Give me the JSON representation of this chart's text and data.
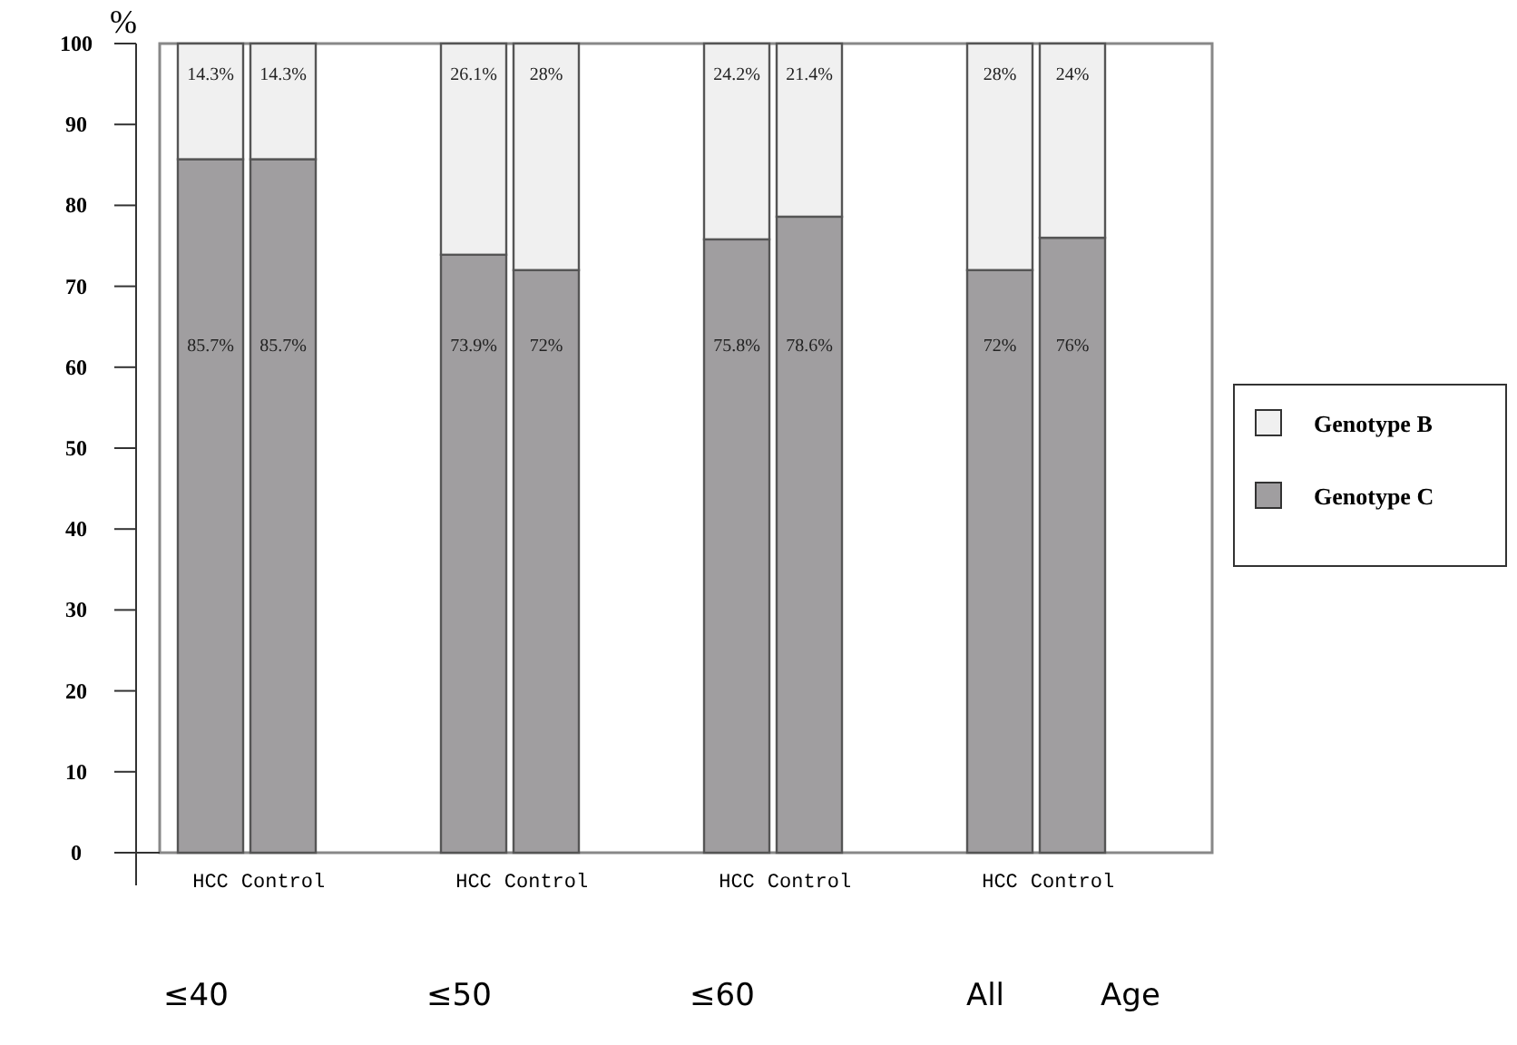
{
  "chart_data": {
    "type": "bar",
    "stacked": true,
    "ylabel": "%",
    "xlabel": "Age",
    "categories": [
      "HCC",
      "Control",
      "HCC",
      "Control",
      "HCC",
      "Control",
      "HCC",
      "Control"
    ],
    "series": [
      {
        "name": "Genotype C",
        "color": "#a09ea0",
        "values": [
          85.7,
          85.7,
          73.9,
          72,
          75.8,
          78.6,
          72,
          76
        ],
        "value_labels": [
          "85.7%",
          "85.7%",
          "73.9%",
          "72%",
          "75.8%",
          "78.6%",
          "72%",
          "76%"
        ]
      },
      {
        "name": "Genotype B",
        "color": "#f0f0f0",
        "values": [
          14.3,
          14.3,
          26.1,
          28,
          24.2,
          21.4,
          28,
          24
        ],
        "value_labels": [
          "14.3%",
          "14.3%",
          "26.1%",
          "28%",
          "24.2%",
          "21.4%",
          "28%",
          "24%"
        ]
      }
    ],
    "ylim": [
      0,
      100
    ],
    "yticks": [
      0,
      10,
      20,
      30,
      40,
      50,
      60,
      70,
      80,
      90,
      100
    ],
    "legend": "right",
    "annotations": [
      "≤40",
      "≤50",
      "≤60",
      "All"
    ]
  }
}
